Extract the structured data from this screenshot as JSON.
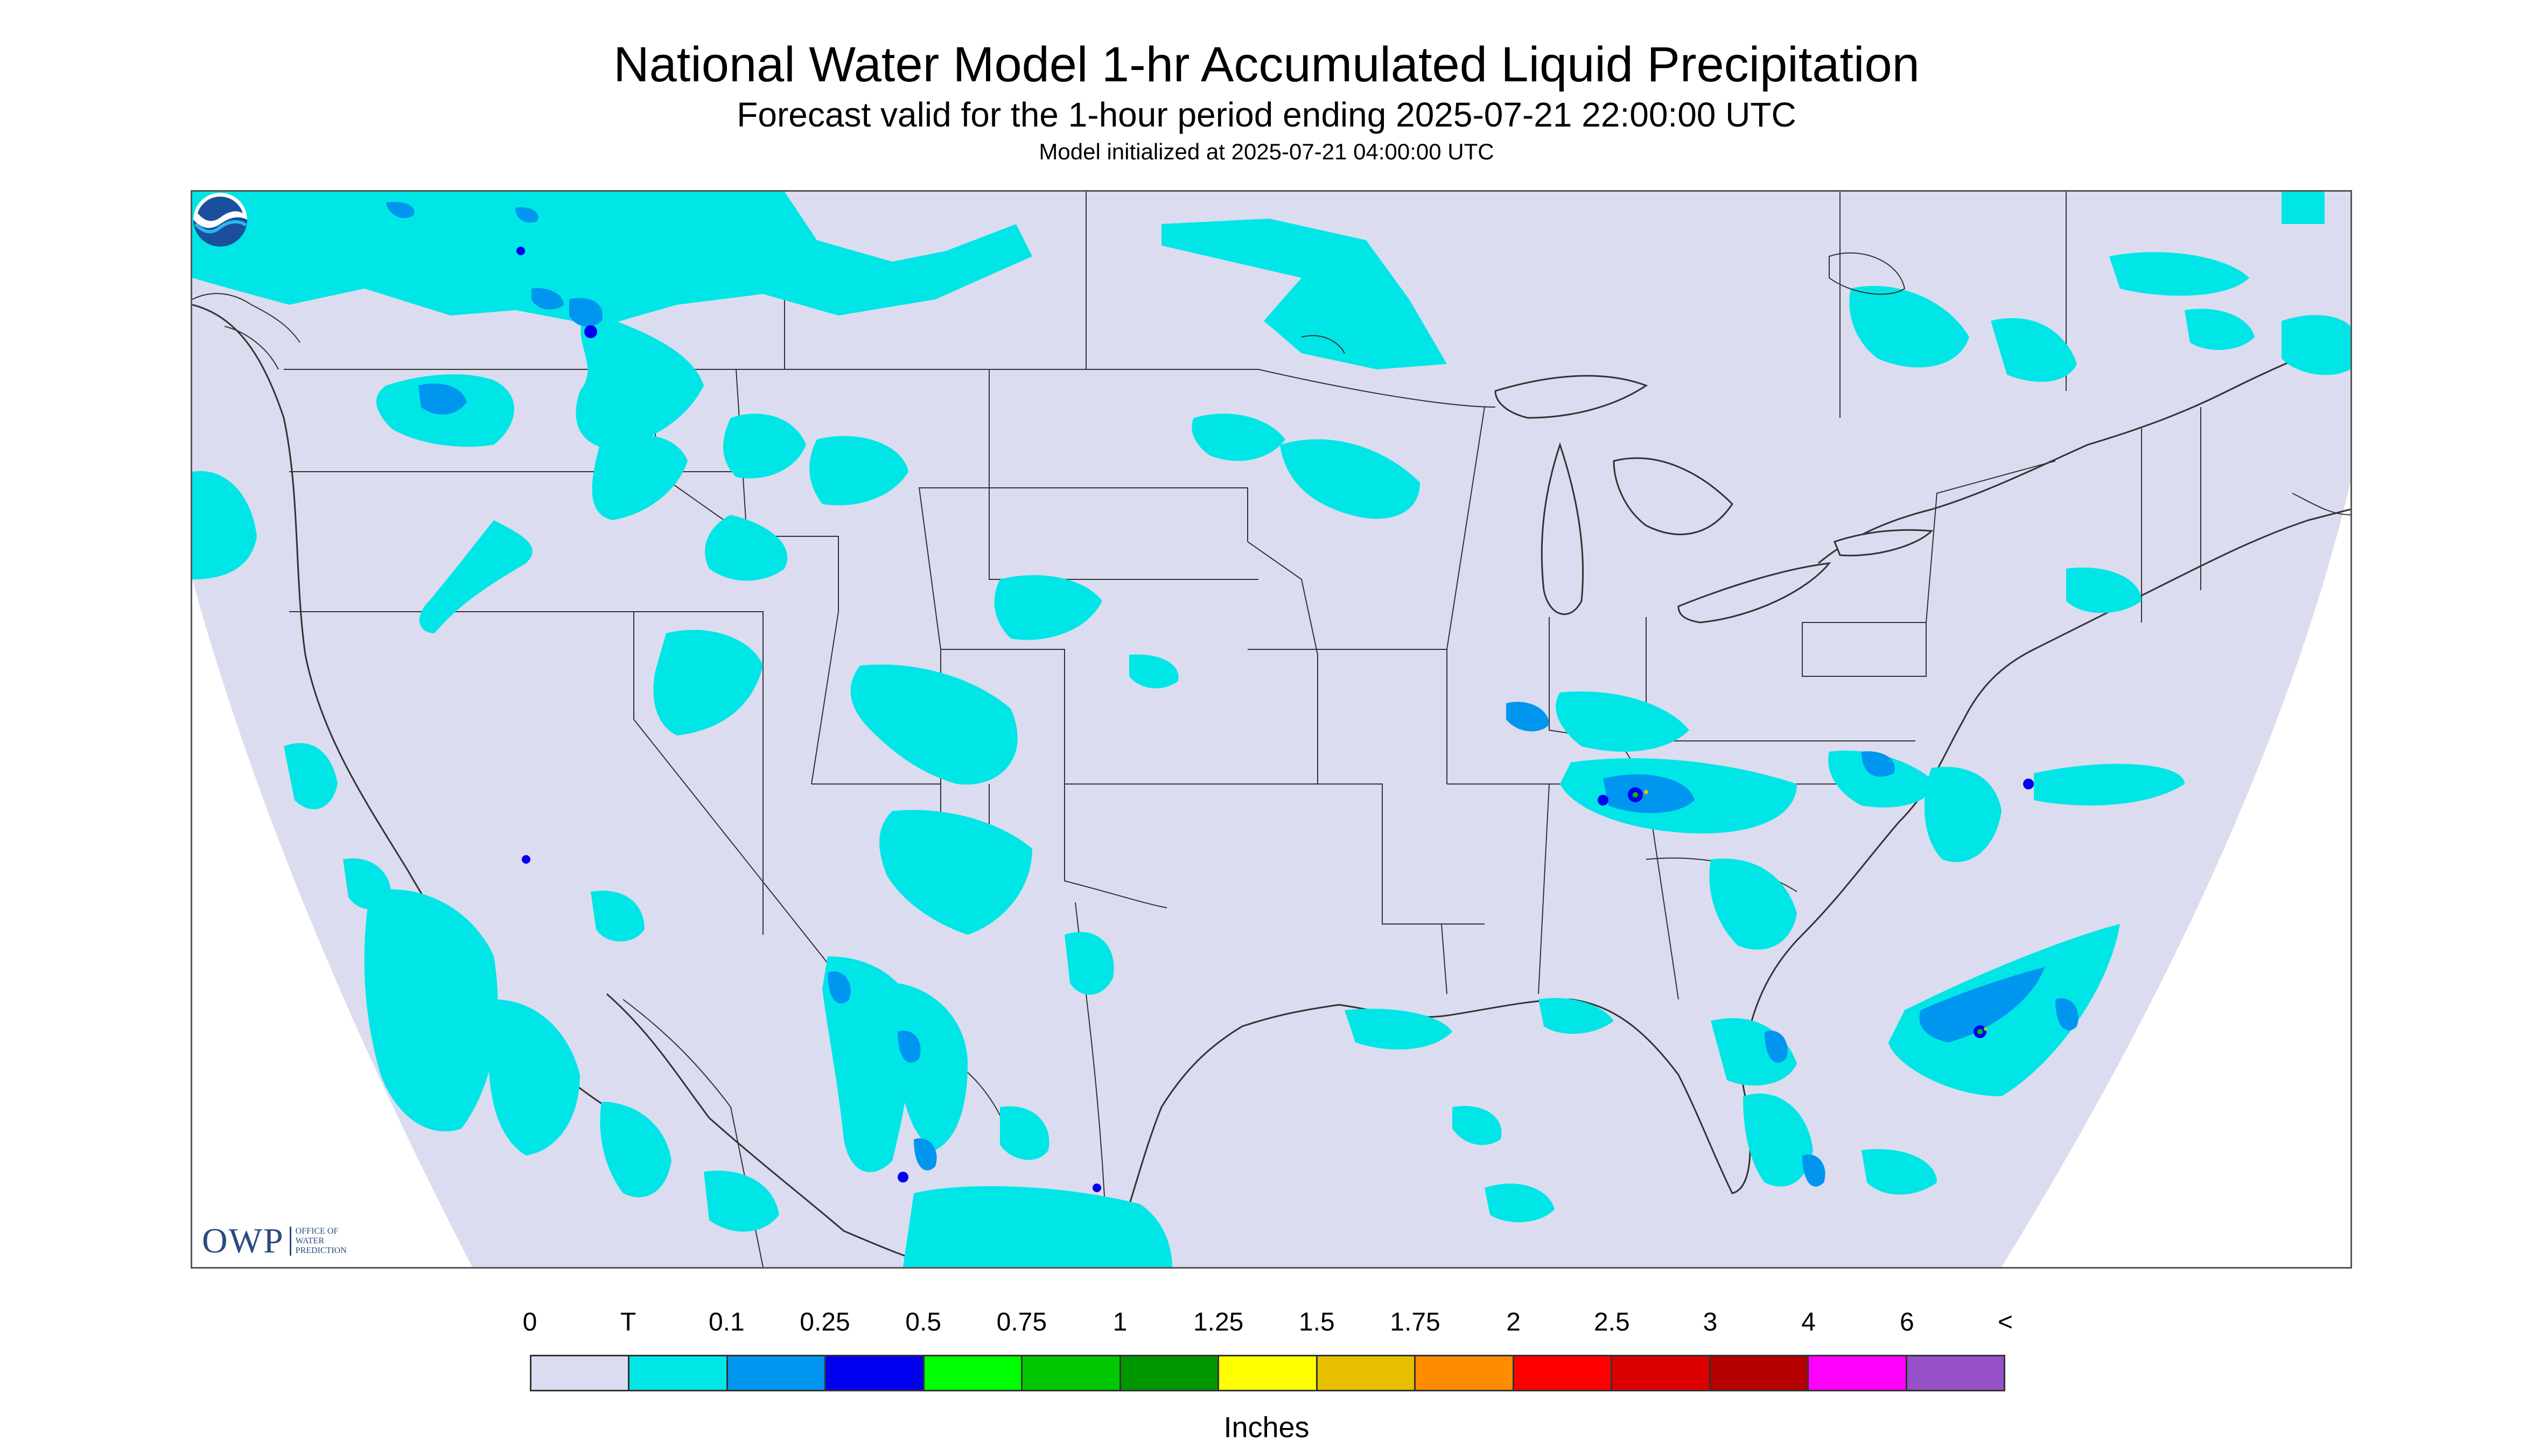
{
  "title": "National Water Model 1-hr Accumulated Liquid Precipitation",
  "subtitle": "Forecast valid for the 1-hour period ending 2025-07-21 22:00:00 UTC",
  "init_line": "Model initialized at 2025-07-21 04:00:00 UTC",
  "logos": {
    "owp_letters": "OWP",
    "owp_sub": "OFFICE OF\nWATER\nPREDICTION",
    "noaa": "NOAA"
  },
  "legend": {
    "units": "Inches",
    "labels": [
      "0",
      "T",
      "0.1",
      "0.25",
      "0.5",
      "0.75",
      "1",
      "1.25",
      "1.5",
      "1.75",
      "2",
      "2.5",
      "3",
      "4",
      "6",
      "<"
    ],
    "colors": [
      "#dcdcf0",
      "#00e6e6",
      "#0096f0",
      "#0000f0",
      "#00ff00",
      "#00c800",
      "#009600",
      "#ffff00",
      "#e6c000",
      "#ff8c00",
      "#ff0000",
      "#dc0000",
      "#b40000",
      "#ff00ff",
      "#9650c8"
    ]
  },
  "map_colors": {
    "background": "#dcdcf0",
    "outside": "#ffffff",
    "trace": "#00e6e6",
    "light": "#0096f0",
    "medium": "#0000f0",
    "borders": "#333333"
  }
}
